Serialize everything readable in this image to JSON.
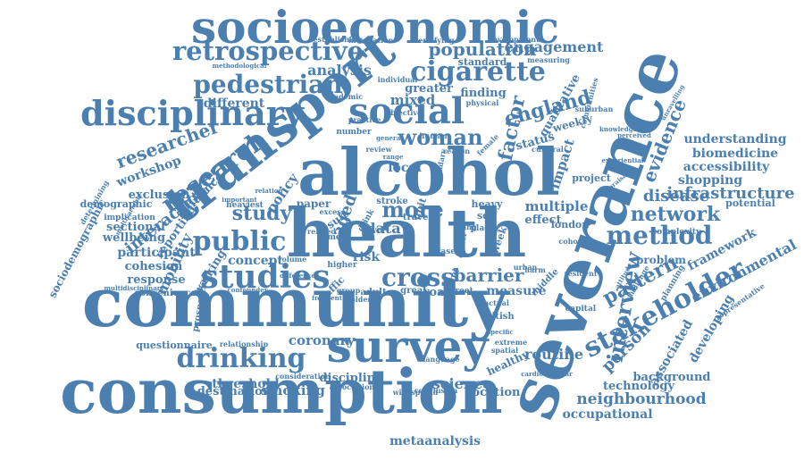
{
  "color": "#4a7fb0",
  "words": [
    {
      "text": "socioeconomic",
      "weight": 10
    },
    {
      "text": "retrospective",
      "weight": 7
    },
    {
      "text": "population",
      "weight": 6
    },
    {
      "text": "engagement",
      "weight": 5
    },
    {
      "text": "cigarette",
      "weight": 7
    },
    {
      "text": "transport",
      "weight": 10
    },
    {
      "text": "pedestrian",
      "weight": 7
    },
    {
      "text": "analysis",
      "weight": 5
    },
    {
      "text": "disciplinary",
      "weight": 8
    },
    {
      "text": "social",
      "weight": 9
    },
    {
      "text": "england",
      "weight": 6
    },
    {
      "text": "factor",
      "weight": 6
    },
    {
      "text": "severance",
      "weight": 10
    },
    {
      "text": "research",
      "weight": 7
    },
    {
      "text": "researcher",
      "weight": 6
    },
    {
      "text": "woman",
      "weight": 6
    },
    {
      "text": "alcohol",
      "weight": 10
    },
    {
      "text": "health",
      "weight": 10
    },
    {
      "text": "workshop",
      "weight": 5
    },
    {
      "text": "qualitative",
      "weight": 4
    },
    {
      "text": "weekly",
      "weight": 4
    },
    {
      "text": "evidence",
      "weight": 5
    },
    {
      "text": "understanding",
      "weight": 4
    },
    {
      "text": "biomedicine",
      "weight": 4
    },
    {
      "text": "accessibility",
      "weight": 4
    },
    {
      "text": "shopping",
      "weight": 4
    },
    {
      "text": "infrastructure",
      "weight": 5
    },
    {
      "text": "interaction",
      "weight": 5
    },
    {
      "text": "exclusion",
      "weight": 4
    },
    {
      "text": "demographic",
      "weight": 3
    },
    {
      "text": "study",
      "weight": 6
    },
    {
      "text": "public",
      "weight": 7
    },
    {
      "text": "method",
      "weight": 7
    },
    {
      "text": "network",
      "weight": 6
    },
    {
      "text": "disease",
      "weight": 5
    },
    {
      "text": "more",
      "weight": 6
    },
    {
      "text": "studies",
      "weight": 7
    },
    {
      "text": "cross",
      "weight": 6
    },
    {
      "text": "barrier",
      "weight": 5
    },
    {
      "text": "interview",
      "weight": 6
    },
    {
      "text": "pattern",
      "weight": 6
    },
    {
      "text": "stakeholder",
      "weight": 7
    },
    {
      "text": "environmental",
      "weight": 5
    },
    {
      "text": "framework",
      "weight": 4
    },
    {
      "text": "community",
      "weight": 10
    },
    {
      "text": "mobility",
      "weight": 4
    },
    {
      "text": "participant",
      "weight": 4
    },
    {
      "text": "wellbeing",
      "weight": 4
    },
    {
      "text": "cohesion",
      "weight": 4
    },
    {
      "text": "response",
      "weight": 4
    },
    {
      "text": "sociodemographic",
      "weight": 3
    },
    {
      "text": "sectional",
      "weight": 4
    },
    {
      "text": "reporting",
      "weight": 4
    },
    {
      "text": "walking",
      "weight": 4
    },
    {
      "text": "concept",
      "weight": 4
    },
    {
      "text": "drinking",
      "weight": 7
    },
    {
      "text": "survey",
      "weight": 9
    },
    {
      "text": "coronary",
      "weight": 4
    },
    {
      "text": "person",
      "weight": 5
    },
    {
      "text": "associated",
      "weight": 4
    },
    {
      "text": "developing",
      "weight": 4
    },
    {
      "text": "consumption",
      "weight": 10
    },
    {
      "text": "threshold",
      "weight": 4
    },
    {
      "text": "smoking",
      "weight": 4
    },
    {
      "text": "destination",
      "weight": 4
    },
    {
      "text": "discipline",
      "weight": 4
    },
    {
      "text": "science",
      "weight": 5
    },
    {
      "text": "location",
      "weight": 4
    },
    {
      "text": "routine",
      "weight": 4
    },
    {
      "text": "background",
      "weight": 4
    },
    {
      "text": "technology",
      "weight": 4
    },
    {
      "text": "neighbourhood",
      "weight": 5
    },
    {
      "text": "occupational",
      "weight": 4
    },
    {
      "text": "metaanalysis",
      "weight": 4
    },
    {
      "text": "questionnaire",
      "weight": 3
    },
    {
      "text": "convenience",
      "weight": 3
    },
    {
      "text": "prospective",
      "weight": 3
    },
    {
      "text": "different",
      "weight": 4
    },
    {
      "text": "influence",
      "weight": 4
    },
    {
      "text": "policy",
      "weight": 4
    },
    {
      "text": "data",
      "weight": 5
    },
    {
      "text": "risk",
      "weight": 4
    },
    {
      "text": "aged",
      "weight": 5
    },
    {
      "text": "multiple",
      "weight": 4
    },
    {
      "text": "effect",
      "weight": 4
    },
    {
      "text": "impact",
      "weight": 4
    },
    {
      "text": "status",
      "weight": 4
    },
    {
      "text": "project",
      "weight": 3
    },
    {
      "text": "potential",
      "weight": 3
    },
    {
      "text": "local",
      "weight": 4
    },
    {
      "text": "mixed",
      "weight": 4
    },
    {
      "text": "greater",
      "weight": 4
    },
    {
      "text": "finding",
      "weight": 4
    },
    {
      "text": "standard",
      "weight": 3
    },
    {
      "text": "measure",
      "weight": 4
    },
    {
      "text": "road",
      "weight": 4
    },
    {
      "text": "great",
      "weight": 3
    },
    {
      "text": "traffic",
      "weight": 3
    },
    {
      "text": "adult",
      "weight": 3
    },
    {
      "text": "healthy",
      "weight": 3
    },
    {
      "text": "british",
      "weight": 3
    },
    {
      "text": "london",
      "weight": 3
    },
    {
      "text": "problem",
      "weight": 3
    },
    {
      "text": "complexity",
      "weight": 2
    },
    {
      "text": "establishing",
      "weight": 2
    },
    {
      "text": "integration",
      "weight": 2
    },
    {
      "text": "identifying",
      "weight": 2
    },
    {
      "text": "development",
      "weight": 2
    },
    {
      "text": "measuring",
      "weight": 2
    },
    {
      "text": "communities",
      "weight": 2
    },
    {
      "text": "methodological",
      "weight": 2
    },
    {
      "text": "academic",
      "weight": 2
    },
    {
      "text": "individual",
      "weight": 2
    },
    {
      "text": "physical",
      "weight": 2
    },
    {
      "text": "objective",
      "weight": 2
    },
    {
      "text": "suburban",
      "weight": 2
    },
    {
      "text": "knowledge",
      "weight": 2
    },
    {
      "text": "perceived",
      "weight": 2
    },
    {
      "text": "unravelling",
      "weight": 2
    },
    {
      "text": "cultural",
      "weight": 2
    },
    {
      "text": "experiential",
      "weight": 2
    },
    {
      "text": "appraisal",
      "weight": 2
    },
    {
      "text": "resident",
      "weight": 2
    },
    {
      "text": "capital",
      "weight": 2
    },
    {
      "text": "attitude",
      "weight": 2
    },
    {
      "text": "representative",
      "weight": 2
    },
    {
      "text": "human",
      "weight": 2
    },
    {
      "text": "review",
      "weight": 2
    },
    {
      "text": "female",
      "weight": 2
    },
    {
      "text": "stroke",
      "weight": 2
    },
    {
      "text": "paper",
      "weight": 2
    },
    {
      "text": "result",
      "weight": 2
    },
    {
      "text": "unit",
      "weight": 2
    },
    {
      "text": "travel",
      "weight": 2
    },
    {
      "text": "heavy",
      "weight": 2
    },
    {
      "text": "self",
      "weight": 2
    },
    {
      "text": "week",
      "weight": 2
    },
    {
      "text": "food",
      "weight": 2
    },
    {
      "text": "urban",
      "weight": 2
    },
    {
      "text": "harm",
      "weight": 2
    },
    {
      "text": "actual",
      "weight": 2
    },
    {
      "text": "extreme",
      "weight": 2
    },
    {
      "text": "specific",
      "weight": 2
    },
    {
      "text": "language",
      "weight": 2
    },
    {
      "text": "association",
      "weight": 2
    },
    {
      "text": "widespread",
      "weight": 2
    },
    {
      "text": "conclusion",
      "weight": 2
    },
    {
      "text": "consideration",
      "weight": 2
    },
    {
      "text": "relationship",
      "weight": 2
    },
    {
      "text": "cardiovascular",
      "weight": 2
    },
    {
      "text": "volume",
      "weight": 2
    },
    {
      "text": "heaviest",
      "weight": 2
    },
    {
      "text": "related",
      "weight": 2
    },
    {
      "text": "higher",
      "weight": 2
    },
    {
      "text": "older",
      "weight": 2
    },
    {
      "text": "group",
      "weight": 2
    },
    {
      "text": "street",
      "weight": 2
    },
    {
      "text": "confounder",
      "weight": 2
    },
    {
      "text": "frequent",
      "weight": 2
    },
    {
      "text": "multidisciplinary",
      "weight": 2
    },
    {
      "text": "implication",
      "weight": 2
    },
    {
      "text": "practice",
      "weight": 2
    },
    {
      "text": "number",
      "weight": 2
    },
    {
      "text": "reason",
      "weight": 2
    },
    {
      "text": "important",
      "weight": 2
    },
    {
      "text": "relation",
      "weight": 2
    },
    {
      "text": "determining",
      "weight": 2
    },
    {
      "text": "multivariable",
      "weight": 2
    },
    {
      "text": "planning",
      "weight": 2
    },
    {
      "text": "challenge",
      "weight": 2
    },
    {
      "text": "spatial",
      "weight": 2
    },
    {
      "text": "cohort",
      "weight": 2
    },
    {
      "text": "difference",
      "weight": 2
    },
    {
      "text": "living",
      "weight": 2
    },
    {
      "text": "level",
      "weight": 2
    },
    {
      "text": "middle",
      "weight": 2
    },
    {
      "text": "place",
      "weight": 2
    },
    {
      "text": "career",
      "weight": 2
    },
    {
      "text": "case",
      "weight": 2
    },
    {
      "text": "general",
      "weight": 2
    },
    {
      "text": "range",
      "weight": 2
    },
    {
      "text": "meta",
      "weight": 2
    },
    {
      "text": "excess",
      "weight": 2
    },
    {
      "text": "drink",
      "weight": 2
    },
    {
      "text": "secondary",
      "weight": 2
    }
  ]
}
